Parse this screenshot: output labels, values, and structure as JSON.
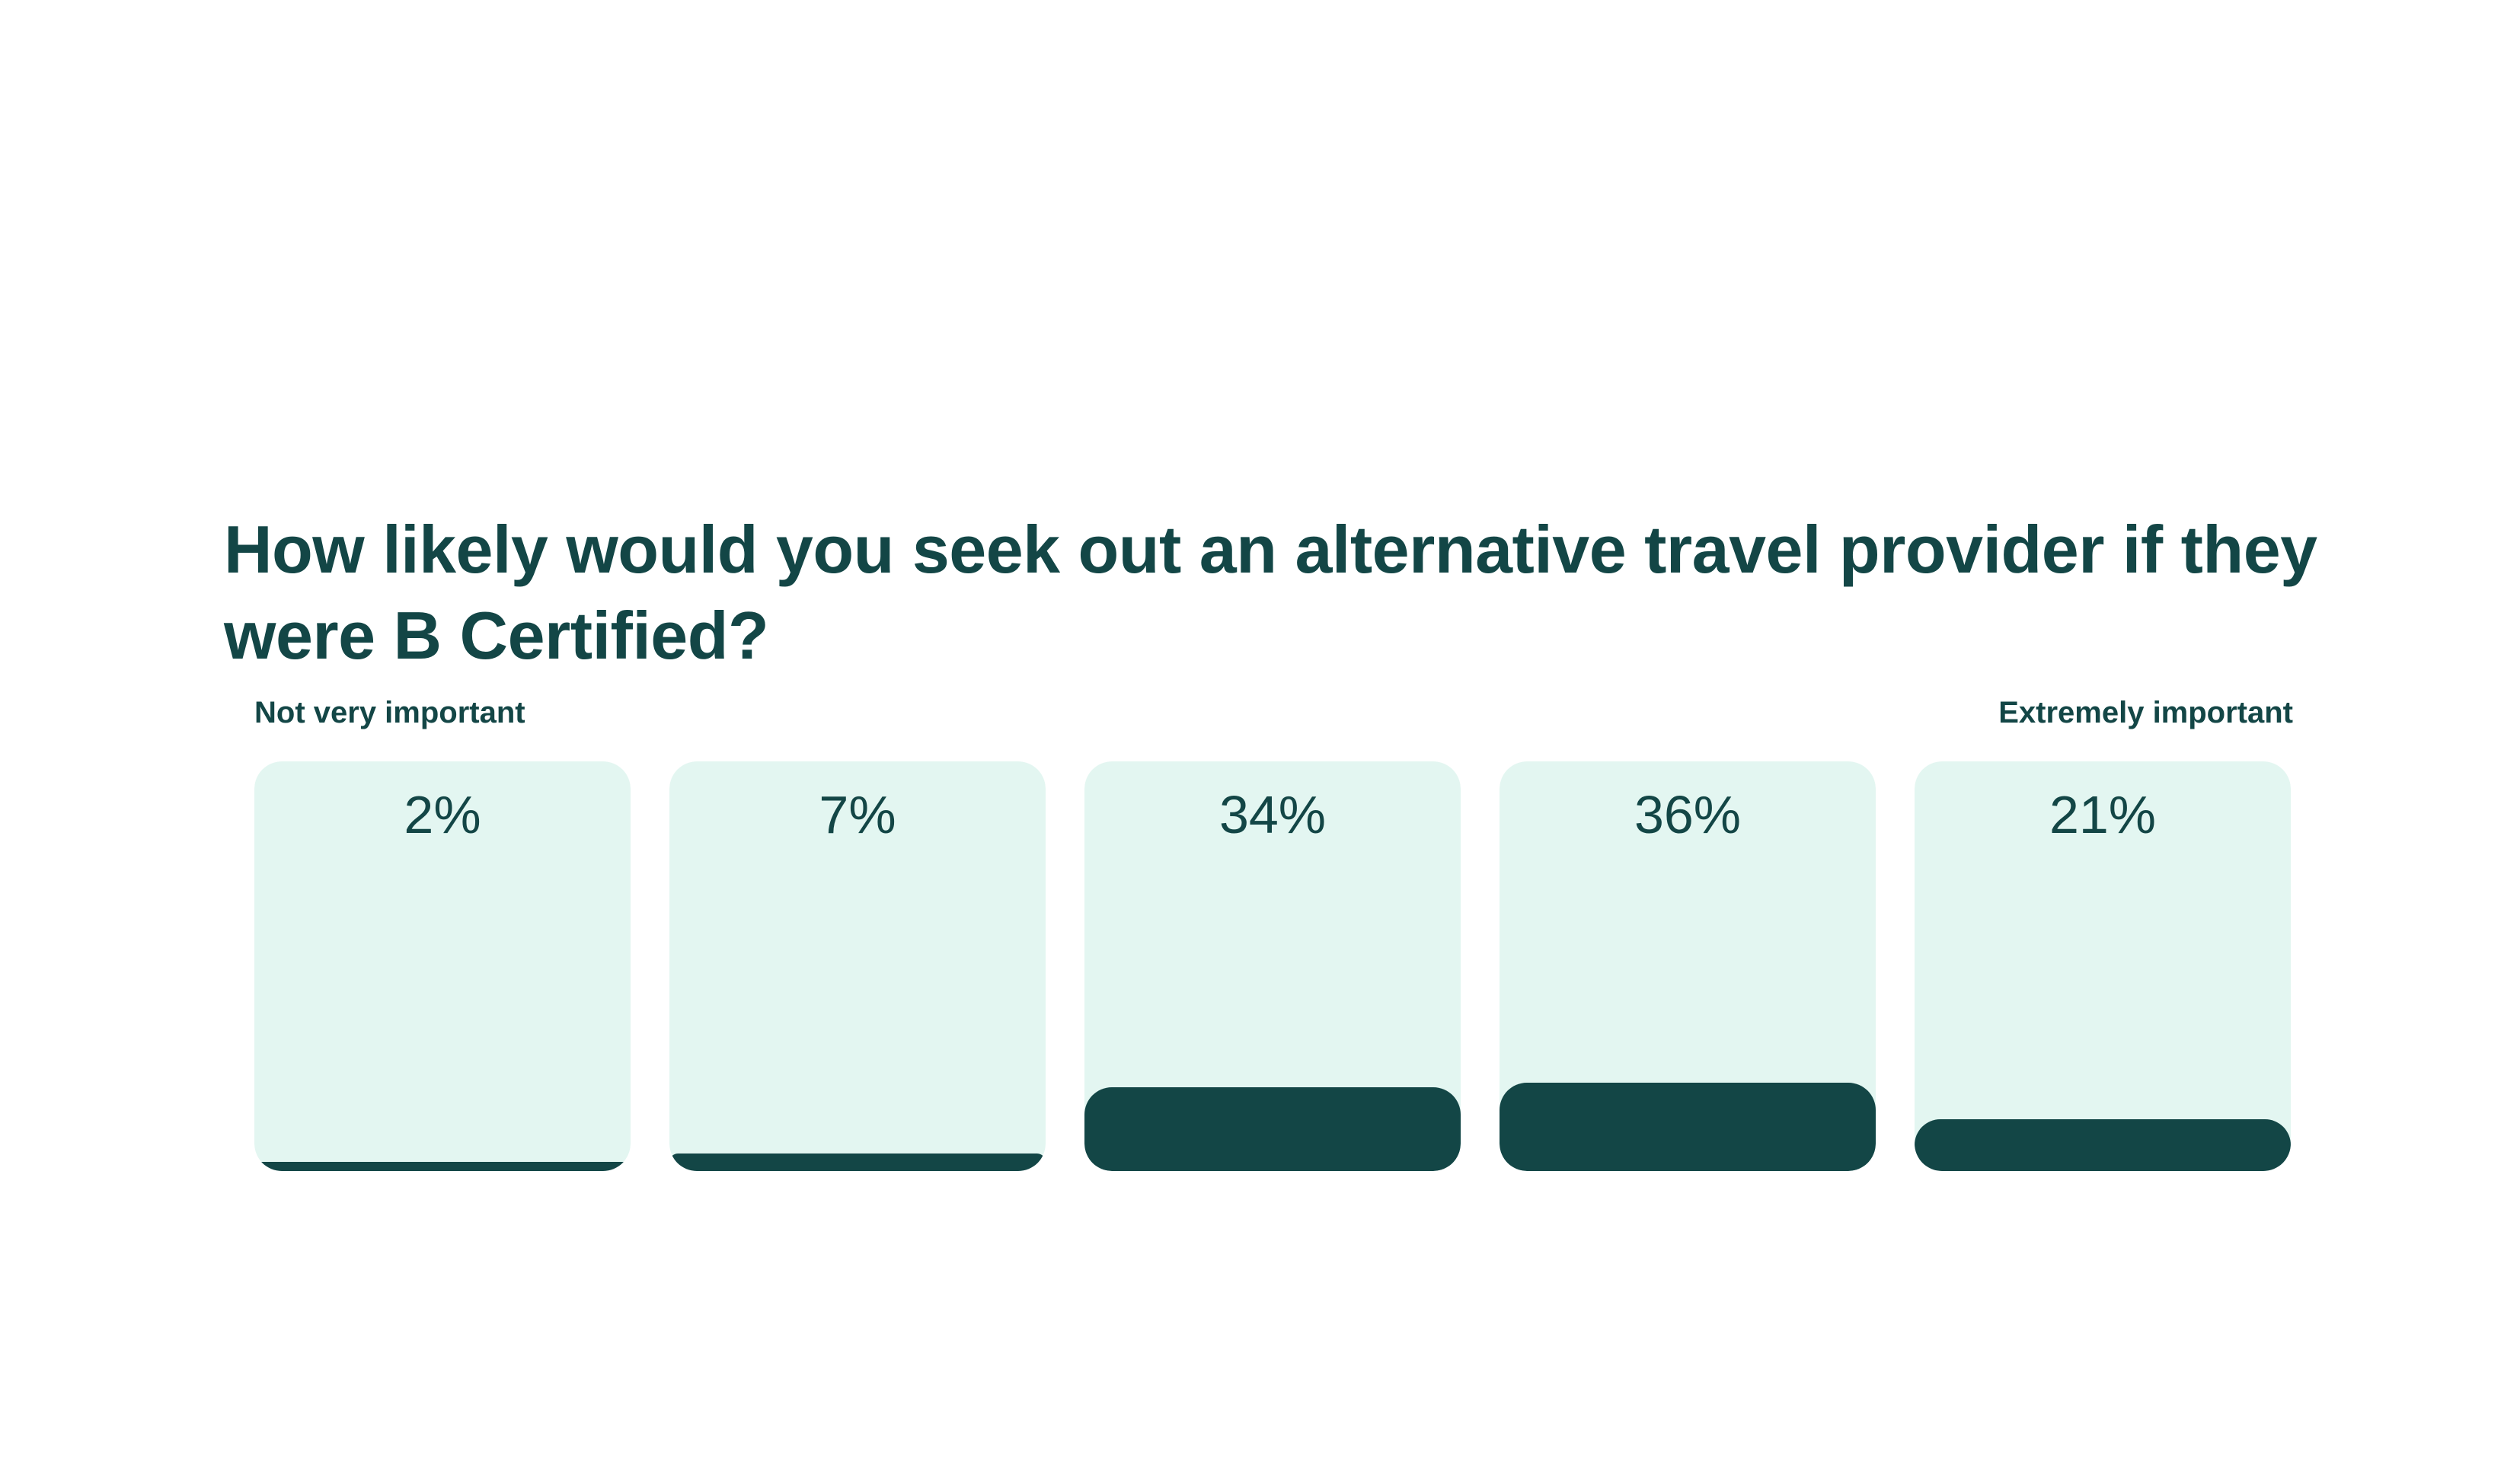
{
  "chart_data": {
    "type": "bar",
    "title": "How likely would you seek out an alternative travel provider if they were B Certified?",
    "scale_low_label": "Not very important",
    "scale_high_label": "Extremely important",
    "categories": [
      "",
      "",
      "",
      "",
      ""
    ],
    "values": [
      2,
      7,
      34,
      36,
      21
    ],
    "value_labels": [
      "2%",
      "7%",
      "34%",
      "36%",
      "21%"
    ],
    "ylim": [
      0,
      100
    ],
    "unit": "%",
    "grid": false,
    "legend": "none"
  },
  "colors": {
    "bar_fill": "#134646",
    "bar_track": "#e3f6f1",
    "text": "#134646",
    "background": "#ffffff"
  }
}
